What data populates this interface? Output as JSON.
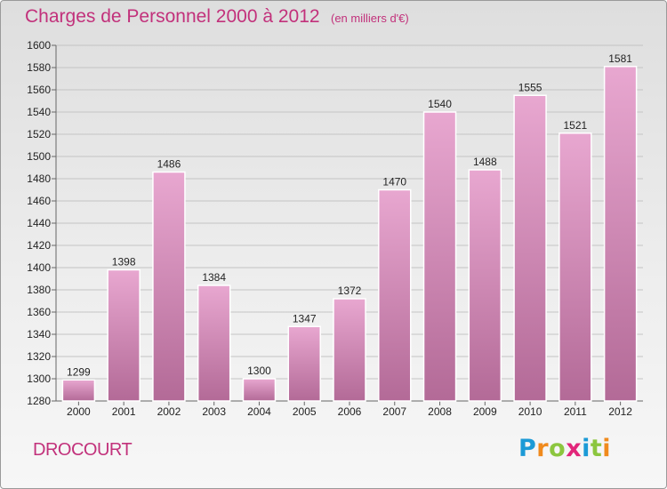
{
  "header": {
    "title": "Charges de Personnel 2000 à 2012",
    "subtitle": "(en milliers d'€)"
  },
  "footer": {
    "commune": "DROCOURT",
    "logo_text": "Proxiti"
  },
  "colors": {
    "title": "#c2317b",
    "bar_top": "#e8a7d0",
    "bar_bottom": "#b36a97",
    "logo": [
      "#1c9ad6",
      "#f08a1c",
      "#8cc63f",
      "#e2267a",
      "#1c9ad6",
      "#8cc63f",
      "#f08a1c"
    ]
  },
  "chart_data": {
    "type": "bar",
    "title": "Charges de Personnel 2000 à 2012",
    "subtitle": "(en milliers d'€)",
    "categories": [
      "2000",
      "2001",
      "2002",
      "2003",
      "2004",
      "2005",
      "2006",
      "2007",
      "2008",
      "2009",
      "2010",
      "2011",
      "2012"
    ],
    "values": [
      1299,
      1398,
      1486,
      1384,
      1300,
      1347,
      1372,
      1470,
      1540,
      1488,
      1555,
      1521,
      1581
    ],
    "xlabel": "",
    "ylabel": "",
    "ylim": [
      1280,
      1600
    ],
    "yticks": [
      1280,
      1300,
      1320,
      1340,
      1360,
      1380,
      1400,
      1420,
      1440,
      1460,
      1480,
      1500,
      1520,
      1540,
      1560,
      1580,
      1600
    ],
    "grid": true,
    "legend": "none"
  }
}
